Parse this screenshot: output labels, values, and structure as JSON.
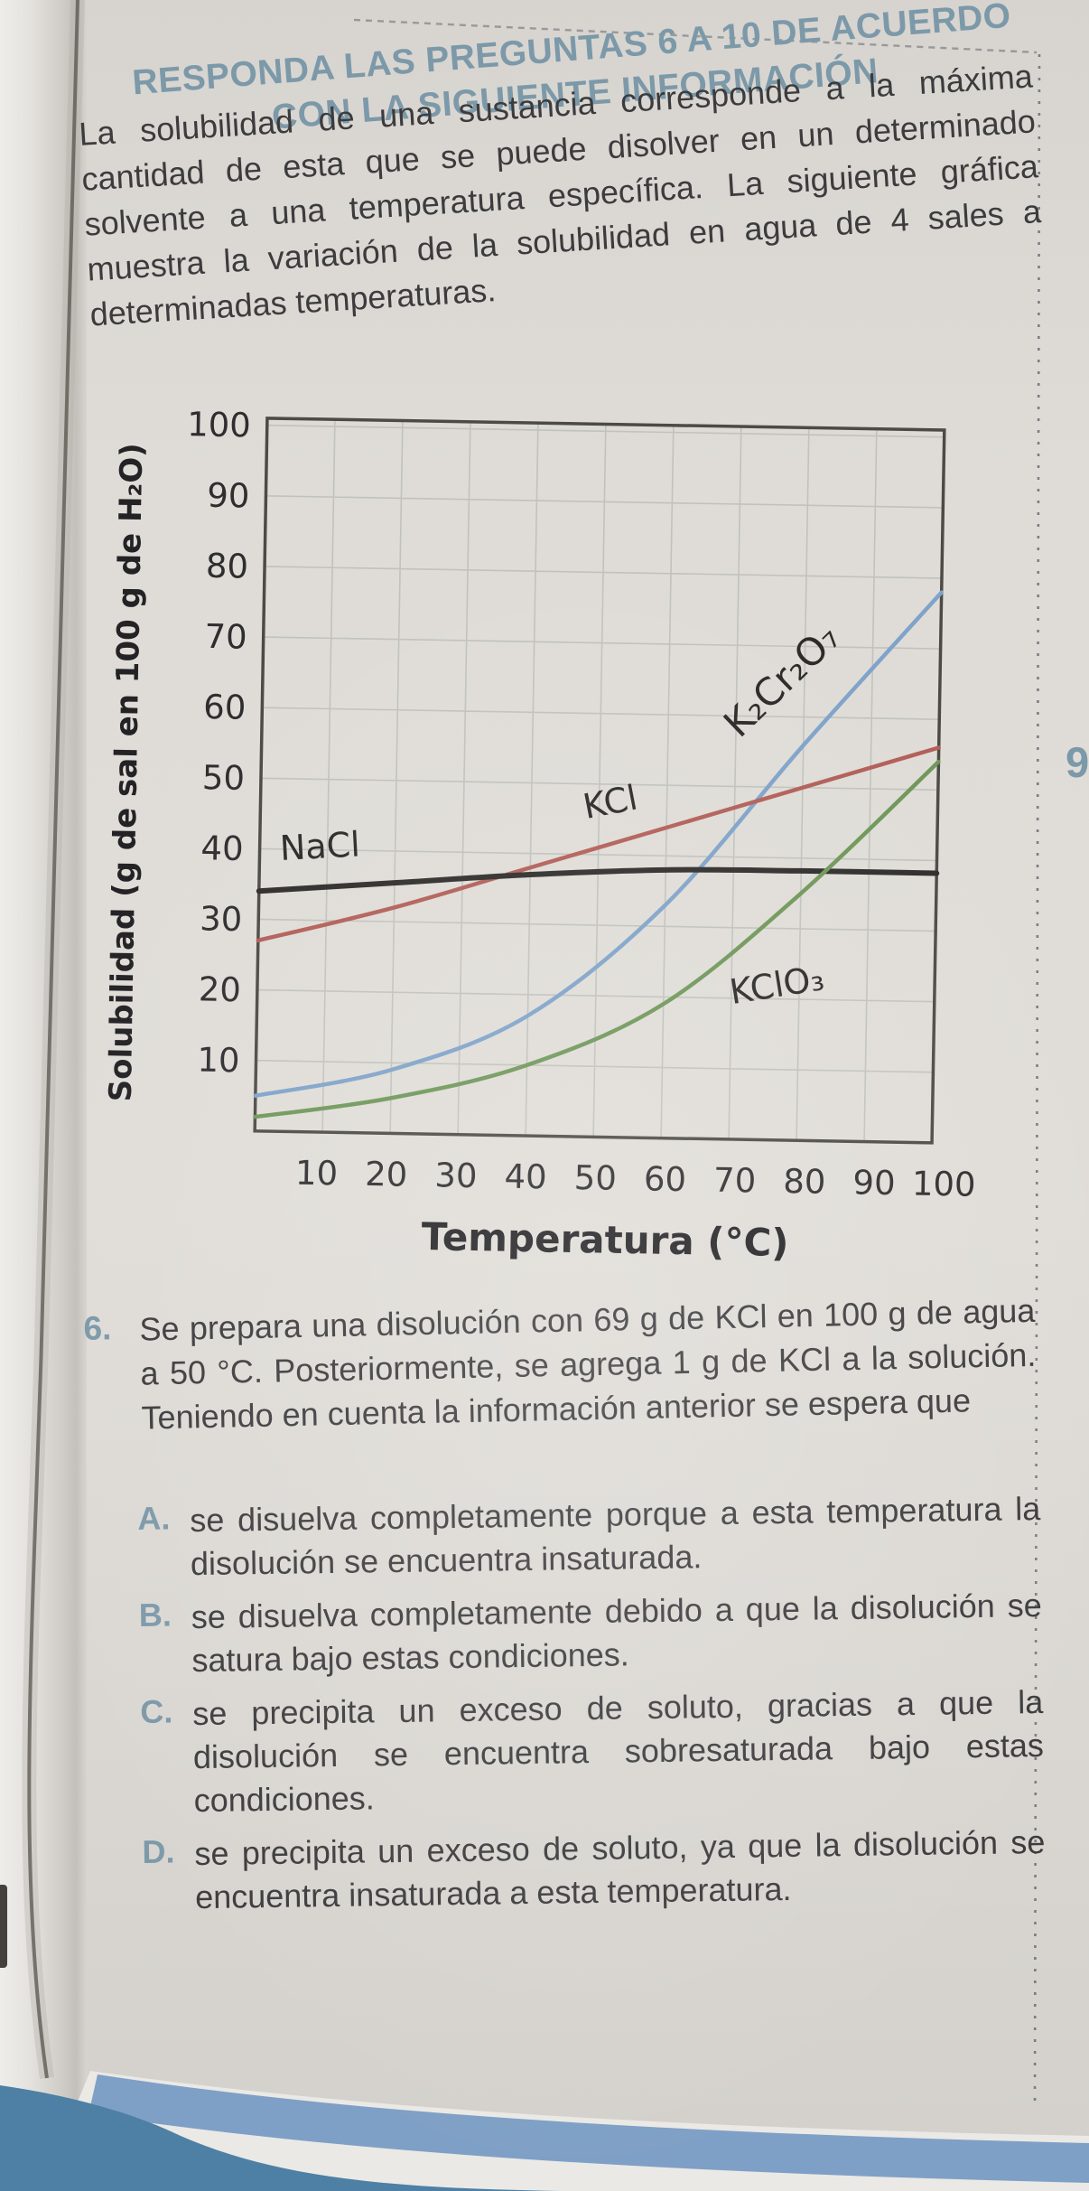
{
  "page": {
    "header_line1": "RESPONDA LAS PREGUNTAS 6 A 10 DE ACUERDO",
    "header_line2": "CON LA SIGUIENTE INFORMACIÓN",
    "intro": "La solubilidad de una sustancia corresponde a la máxima cantidad de esta que se puede disolver en un determinado solvente a una temperatura específica. La siguiente gráfica muestra la variación de la solubilidad en agua de 4 sales a determinadas temperaturas.",
    "margin_page_number": "9"
  },
  "chart_data": {
    "type": "line",
    "title": "",
    "xlabel": "Temperatura (°C)",
    "ylabel": "Solubilidad (g de sal en 100 g de H₂O)",
    "xlim": [
      0,
      100
    ],
    "ylim": [
      0,
      101
    ],
    "xticks": [
      10,
      20,
      30,
      40,
      50,
      60,
      70,
      80,
      90,
      100
    ],
    "yticks": [
      100,
      90,
      80,
      70,
      60,
      50,
      40,
      30,
      20,
      10
    ],
    "grid": true,
    "legend_position": "inline-curve-labels",
    "x": [
      0,
      20,
      40,
      60,
      80,
      100
    ],
    "series": [
      {
        "name": "K₂Cr₂O₇",
        "color": "#7fa3c9",
        "stroke_width": 4.5,
        "values": [
          5,
          9,
          17,
          33,
          56,
          78
        ],
        "label": {
          "t": 78,
          "v": 65.5,
          "angle": -45,
          "size": 42
        }
      },
      {
        "name": "KCl",
        "color": "#b25f58",
        "stroke_width": 4.5,
        "values": [
          27,
          32,
          38,
          44,
          50,
          56
        ],
        "label": {
          "t": 52,
          "v": 47.5,
          "angle": -12,
          "size": 38
        }
      },
      {
        "name": "NaCl",
        "color": "#2f2d2b",
        "stroke_width": 6,
        "values": [
          34,
          35.5,
          37,
          38,
          38.2,
          38.2
        ],
        "label": {
          "t": 9,
          "v": 40.5,
          "angle": -4,
          "size": 38
        }
      },
      {
        "name": "KClO₃",
        "color": "#6f9759",
        "stroke_width": 4.5,
        "values": [
          2,
          5,
          10,
          19,
          35,
          54
        ],
        "label": {
          "t": 77,
          "v": 22,
          "angle": -10,
          "size": 38
        }
      }
    ]
  },
  "question": {
    "number": "6.",
    "text": "Se prepara una disolución con 69 g de KCl en 100 g de agua a 50 °C. Posteriormente, se agrega 1 g de KCl a la solución. Teniendo en cuenta la información anterior se espera que",
    "options": [
      {
        "letter": "A.",
        "text": "se disuelva completamente porque a esta temperatura la disolución se encuentra insaturada."
      },
      {
        "letter": "B.",
        "text": "se disuelva completamente debido a que la disolución se satura bajo estas condiciones."
      },
      {
        "letter": "C.",
        "text": "se precipita un exceso de soluto, gracias a que la disolución se encuentra sobresaturada bajo estas condiciones."
      },
      {
        "letter": "D.",
        "text": "se precipita un exceso de soluto, ya que la disolución se encuentra insaturada a esta temperatura."
      }
    ]
  }
}
